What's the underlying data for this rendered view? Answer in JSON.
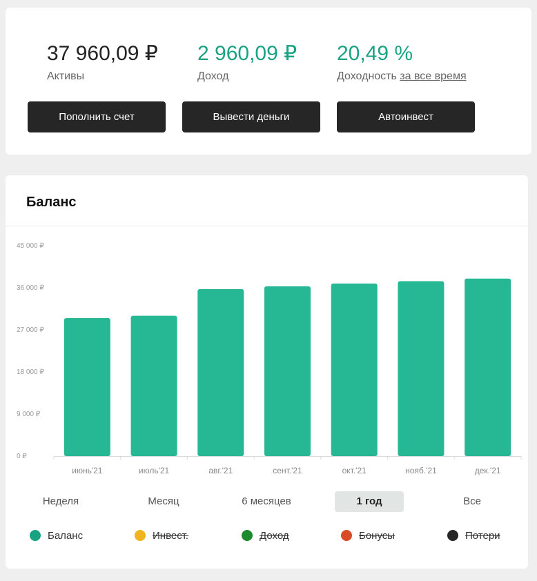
{
  "summary": {
    "assets": {
      "value": "37 960,09 ₽",
      "label": "Активы"
    },
    "income": {
      "value": "2 960,09 ₽",
      "label": "Доход"
    },
    "yield": {
      "value": "20,49 %",
      "label": "Доходность",
      "period_link": "за все время"
    }
  },
  "actions": {
    "deposit": "Пополнить счет",
    "withdraw": "Вывести деньги",
    "autoinvest": "Автоинвест"
  },
  "balance": {
    "title": "Баланс",
    "periods": [
      {
        "label": "Неделя",
        "active": false
      },
      {
        "label": "Месяц",
        "active": false
      },
      {
        "label": "6 месяцев",
        "active": false
      },
      {
        "label": "1 год",
        "active": true
      },
      {
        "label": "Все",
        "active": false
      }
    ],
    "legend": [
      {
        "label": "Баланс",
        "color": "#1aa383",
        "enabled": true
      },
      {
        "label": "Инвест.",
        "color": "#f0b51c",
        "enabled": false
      },
      {
        "label": "Доход",
        "color": "#1e8a2f",
        "enabled": false
      },
      {
        "label": "Бонусы",
        "color": "#d84b26",
        "enabled": false
      },
      {
        "label": "Потери",
        "color": "#262626",
        "enabled": false
      }
    ]
  },
  "colors": {
    "accent": "#1aa383",
    "bar": "#26b894",
    "dark_button": "#262626"
  },
  "chart_data": {
    "type": "bar",
    "categories": [
      "июнь'21",
      "июль'21",
      "авг.'21",
      "сент.'21",
      "окт.'21",
      "нояб.'21",
      "дек.'21"
    ],
    "series": [
      {
        "name": "Баланс",
        "values": [
          29500,
          30000,
          35700,
          36300,
          36900,
          37400,
          37960
        ]
      }
    ],
    "yticks": [
      {
        "value": 0,
        "label": "0 ₽"
      },
      {
        "value": 9000,
        "label": "9 000 ₽"
      },
      {
        "value": 18000,
        "label": "18 000 ₽"
      },
      {
        "value": 27000,
        "label": "27 000 ₽"
      },
      {
        "value": 36000,
        "label": "36 000 ₽"
      },
      {
        "value": 45000,
        "label": "45 000 ₽"
      }
    ],
    "ylim": [
      0,
      45000
    ],
    "grid": false
  }
}
